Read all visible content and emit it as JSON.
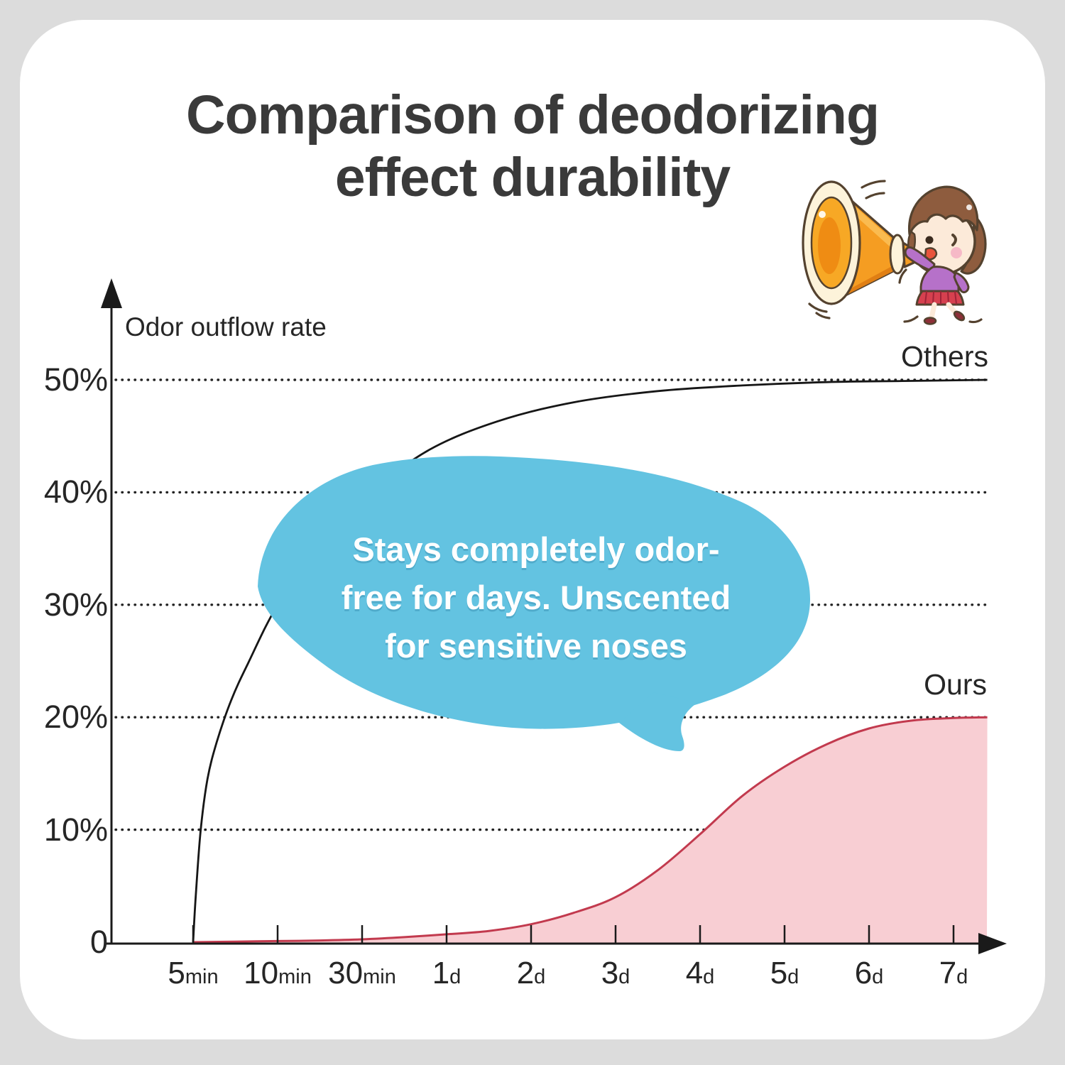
{
  "title": {
    "line1": "Comparison of deodorizing",
    "line2": "effect durability"
  },
  "colors": {
    "background": "#dcdcdc",
    "card": "#ffffff",
    "title_text": "#3a3a3a",
    "axis_text": "#262626",
    "bubble": "#63c3e1",
    "bubble_text": "#ffffff",
    "others_line": "#161616",
    "ours_line": "#c23a4e",
    "ours_fill": "#f8ced3"
  },
  "chart_data": {
    "type": "area",
    "title": "Comparison of deodorizing effect durability",
    "y_axis_label": "Odor outflow rate",
    "ylim": [
      0,
      55
    ],
    "grid": "dotted horizontal lines at each 10% level",
    "legend_position": "labels at right end of each curve",
    "y_ticks": [
      {
        "label": "50%",
        "value": 50
      },
      {
        "label": "40%",
        "value": 40
      },
      {
        "label": "30%",
        "value": 30
      },
      {
        "label": "20%",
        "value": 20
      },
      {
        "label": "10%",
        "value": 10
      },
      {
        "label": "0",
        "value": 0
      }
    ],
    "x_ticks": [
      {
        "value": "5",
        "unit": "min"
      },
      {
        "value": "10",
        "unit": "min"
      },
      {
        "value": "30",
        "unit": "min"
      },
      {
        "value": "1",
        "unit": "d"
      },
      {
        "value": "2",
        "unit": "d"
      },
      {
        "value": "3",
        "unit": "d"
      },
      {
        "value": "4",
        "unit": "d"
      },
      {
        "value": "5",
        "unit": "d"
      },
      {
        "value": "6",
        "unit": "d"
      },
      {
        "value": "7",
        "unit": "d"
      }
    ],
    "series": [
      {
        "name": "Others",
        "style": "line",
        "description": "odor outflow rises steeply within minutes and saturates near 50%",
        "points_tickunits_percent": [
          [
            0,
            0
          ],
          [
            0.03,
            4
          ],
          [
            0.09,
            10
          ],
          [
            0.17,
            14.5
          ],
          [
            0.28,
            17.8
          ],
          [
            0.45,
            21.5
          ],
          [
            0.65,
            24.8
          ],
          [
            1.0,
            30
          ],
          [
            1.5,
            35.5
          ],
          [
            2.1,
            40
          ],
          [
            2.8,
            43.8
          ],
          [
            3.6,
            46.3
          ],
          [
            4.5,
            48
          ],
          [
            5.5,
            49
          ],
          [
            6.5,
            49.5
          ],
          [
            7.5,
            49.8
          ],
          [
            8.4,
            49.9
          ],
          [
            9.4,
            50
          ]
        ]
      },
      {
        "name": "Ours",
        "style": "area",
        "description": "stays near 0% for days, S-curve rise after day 2, saturates at 20% by day 7",
        "points_tickunits_percent": [
          [
            0,
            0
          ],
          [
            0.5,
            0.05
          ],
          [
            1,
            0.1
          ],
          [
            1.5,
            0.15
          ],
          [
            2,
            0.25
          ],
          [
            2.5,
            0.45
          ],
          [
            3,
            0.7
          ],
          [
            3.5,
            1.0
          ],
          [
            4,
            1.6
          ],
          [
            4.5,
            2.6
          ],
          [
            5,
            4.0
          ],
          [
            5.5,
            6.4
          ],
          [
            6,
            9.6
          ],
          [
            6.5,
            13.0
          ],
          [
            7,
            15.6
          ],
          [
            7.5,
            17.6
          ],
          [
            8,
            19.0
          ],
          [
            8.5,
            19.7
          ],
          [
            9,
            19.93
          ],
          [
            9.4,
            20
          ]
        ]
      }
    ]
  },
  "annotation": {
    "lines": [
      "Stays completely odor-",
      "free for days. Unscented",
      "for sensitive noses"
    ]
  },
  "illustration": {
    "name": "girl shouting into orange megaphone"
  }
}
